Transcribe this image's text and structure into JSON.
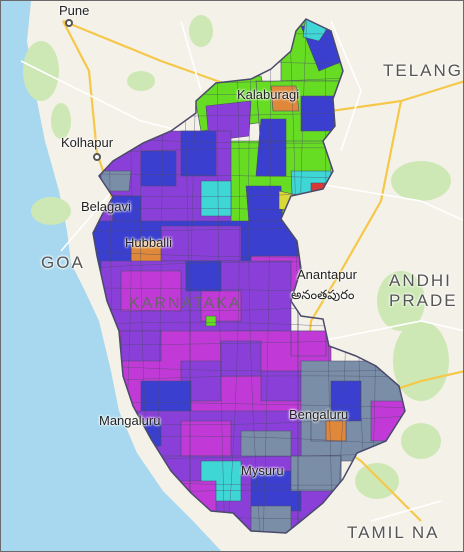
{
  "labels": {
    "pune": "Pune",
    "telangana": "TELANG",
    "kalaburagi": "Kalaburagi",
    "kolhapur": "Kolhapur",
    "belagavi": "Belagavi",
    "goa": "GOA",
    "hubballi": "Hubballi",
    "anantapur": "Anantapur",
    "anantapur_te": "అనంతపురం",
    "andhra1": "ANDHI",
    "andhra2": "PRADE",
    "karnataka": "KARNATAKA",
    "mangaluru": "Mangaluru",
    "bengaluru": "Bengaluru",
    "mysuru": "Mysuru",
    "tamil": "TAMIL NA"
  },
  "colors": {
    "sea": "#a8d8ef",
    "land": "#f4f1e8",
    "forest": "#cde8b4",
    "road_major": "#f5c84a",
    "road_minor": "#ffffff",
    "violet": "#8a3fd8",
    "magenta": "#c13ad8",
    "blue": "#3a3fcf",
    "lime": "#66dd22",
    "cyan": "#3fd6d6",
    "slate": "#7a8ea8",
    "orange": "#e0883a",
    "yellow": "#d8d838",
    "red": "#d83838",
    "border": "#4a4a6a"
  }
}
